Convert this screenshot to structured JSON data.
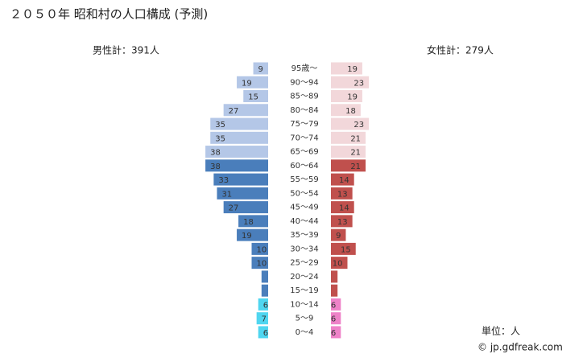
{
  "chart_data": {
    "type": "pyramid",
    "title": "２０５０年 昭和村の人口構成 (予測)",
    "categories": [
      "95歳～",
      "90～94",
      "85～89",
      "80～84",
      "75～79",
      "70～74",
      "65～69",
      "60～64",
      "55～59",
      "50～54",
      "45～49",
      "40～44",
      "35～39",
      "30～34",
      "25～29",
      "20～24",
      "15～19",
      "10～14",
      "5～9",
      "0～4"
    ],
    "male": {
      "label": "男性計：391人",
      "values": [
        9,
        19,
        15,
        27,
        35,
        35,
        38,
        38,
        33,
        31,
        27,
        18,
        19,
        10,
        10,
        4,
        4,
        6,
        7,
        6
      ],
      "colors": [
        "#b4c7e7",
        "#b4c7e7",
        "#b4c7e7",
        "#b4c7e7",
        "#b4c7e7",
        "#b4c7e7",
        "#b4c7e7",
        "#4a7ebb",
        "#4a7ebb",
        "#4a7ebb",
        "#4a7ebb",
        "#4a7ebb",
        "#4a7ebb",
        "#4a7ebb",
        "#4a7ebb",
        "#4a7ebb",
        "#4a7ebb",
        "#4fd6f0",
        "#4fd6f0",
        "#4fd6f0"
      ]
    },
    "female": {
      "label": "女性計：279人",
      "values": [
        19,
        23,
        19,
        18,
        23,
        21,
        21,
        21,
        14,
        13,
        14,
        13,
        9,
        15,
        10,
        4,
        4,
        6,
        6,
        6
      ],
      "colors": [
        "#f2d7da",
        "#f2d7da",
        "#f2d7da",
        "#f2d7da",
        "#f2d7da",
        "#f2d7da",
        "#f2d7da",
        "#c0504d",
        "#c0504d",
        "#c0504d",
        "#c0504d",
        "#c0504d",
        "#c0504d",
        "#c0504d",
        "#c0504d",
        "#c0504d",
        "#c0504d",
        "#ee82c8",
        "#ee82c8",
        "#ee82c8"
      ]
    },
    "unit": "単位：人",
    "source": "© jp.gdfreak.com"
  }
}
